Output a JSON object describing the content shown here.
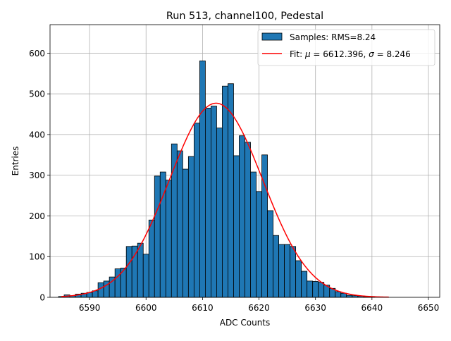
{
  "chart_data": {
    "type": "bar",
    "title": "Run 513, channel100, Pedestal",
    "xlabel": "ADC Counts",
    "ylabel": "Entries",
    "xlim": [
      6583,
      6652
    ],
    "ylim": [
      0,
      670
    ],
    "xticks": [
      6590,
      6600,
      6610,
      6620,
      6630,
      6640,
      6650
    ],
    "yticks": [
      0,
      100,
      200,
      300,
      400,
      500,
      600
    ],
    "grid": true,
    "bin_width": 1,
    "bins": [
      {
        "x": 6585,
        "y": 2
      },
      {
        "x": 6586,
        "y": 6
      },
      {
        "x": 6587,
        "y": 4
      },
      {
        "x": 6588,
        "y": 8
      },
      {
        "x": 6589,
        "y": 10
      },
      {
        "x": 6590,
        "y": 12
      },
      {
        "x": 6591,
        "y": 16
      },
      {
        "x": 6592,
        "y": 36
      },
      {
        "x": 6593,
        "y": 40
      },
      {
        "x": 6594,
        "y": 50
      },
      {
        "x": 6595,
        "y": 70
      },
      {
        "x": 6596,
        "y": 72
      },
      {
        "x": 6597,
        "y": 125
      },
      {
        "x": 6598,
        "y": 126
      },
      {
        "x": 6599,
        "y": 133
      },
      {
        "x": 6600,
        "y": 106
      },
      {
        "x": 6601,
        "y": 190
      },
      {
        "x": 6602,
        "y": 298
      },
      {
        "x": 6603,
        "y": 308
      },
      {
        "x": 6604,
        "y": 288
      },
      {
        "x": 6605,
        "y": 377
      },
      {
        "x": 6606,
        "y": 360
      },
      {
        "x": 6607,
        "y": 315
      },
      {
        "x": 6608,
        "y": 346
      },
      {
        "x": 6609,
        "y": 428
      },
      {
        "x": 6610,
        "y": 581
      },
      {
        "x": 6611,
        "y": 465
      },
      {
        "x": 6612,
        "y": 470
      },
      {
        "x": 6613,
        "y": 416
      },
      {
        "x": 6614,
        "y": 519
      },
      {
        "x": 6615,
        "y": 525
      },
      {
        "x": 6616,
        "y": 348
      },
      {
        "x": 6617,
        "y": 397
      },
      {
        "x": 6618,
        "y": 381
      },
      {
        "x": 6619,
        "y": 308
      },
      {
        "x": 6620,
        "y": 260
      },
      {
        "x": 6621,
        "y": 350
      },
      {
        "x": 6622,
        "y": 213
      },
      {
        "x": 6623,
        "y": 152
      },
      {
        "x": 6624,
        "y": 130
      },
      {
        "x": 6625,
        "y": 130
      },
      {
        "x": 6626,
        "y": 125
      },
      {
        "x": 6627,
        "y": 90
      },
      {
        "x": 6628,
        "y": 64
      },
      {
        "x": 6629,
        "y": 40
      },
      {
        "x": 6630,
        "y": 39
      },
      {
        "x": 6631,
        "y": 37
      },
      {
        "x": 6632,
        "y": 30
      },
      {
        "x": 6633,
        "y": 22
      },
      {
        "x": 6634,
        "y": 14
      },
      {
        "x": 6635,
        "y": 10
      },
      {
        "x": 6636,
        "y": 5
      },
      {
        "x": 6637,
        "y": 4
      },
      {
        "x": 6638,
        "y": 3
      },
      {
        "x": 6639,
        "y": 1
      },
      {
        "x": 6640,
        "y": 2
      }
    ],
    "fit": {
      "mu": 6612.396,
      "sigma": 8.246,
      "amplitude": 477,
      "x_range": [
        6585,
        6643
      ]
    },
    "colors": {
      "bar": "#1f77b4",
      "edge": "#000000",
      "fit": "#ff0000",
      "grid": "#b0b0b0"
    },
    "legend": {
      "placement": "top-right",
      "samples": {
        "prefix": "Samples: RMS=",
        "value": "8.24"
      },
      "fit": {
        "prefix": "Fit: ",
        "mu_symbol": "μ",
        "mu_text": " = 6612.396, ",
        "sigma_symbol": "σ",
        "sigma_text": " = 8.246"
      }
    }
  }
}
